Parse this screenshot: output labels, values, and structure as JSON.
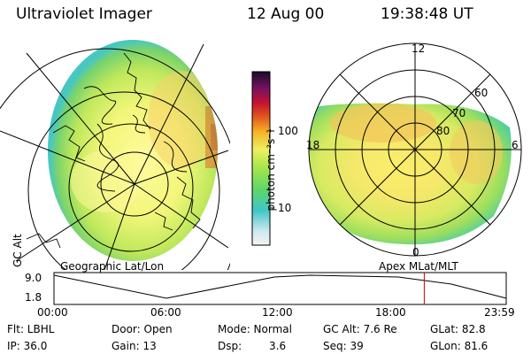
{
  "header": {
    "instrument": "Ultraviolet Imager",
    "date": "12 Aug 00",
    "time": "19:38:48 UT"
  },
  "colorbar": {
    "unit_label": "photon cm⁻²s⁻¹",
    "tick_100": "100",
    "tick_10": "10"
  },
  "left_map": {
    "caption": "Geographic Lat/Lon"
  },
  "right_map": {
    "caption": "Apex MLat/MLT",
    "mlt_labels": {
      "top": "12",
      "left": "18",
      "right": "6",
      "bottom": "0"
    },
    "lat_labels": {
      "l60": "60",
      "l70": "70",
      "l80": "80"
    }
  },
  "altitude_plot": {
    "ylabel": "GC Alt",
    "ymax": "9.0",
    "ymin": "1.8",
    "xticks": [
      "00:00",
      "06:00",
      "12:00",
      "18:00",
      "23:59"
    ],
    "current_marker_hour": 19.65,
    "colors": {
      "marker": "#cc0000"
    }
  },
  "status": {
    "filter": "Flt: LBHL",
    "door": "Door: Open",
    "mode": "Mode: Normal",
    "gc_alt": "GC Alt: 7.6 Re",
    "glat": "GLat:  82.8",
    "ip": "IP: 36.0",
    "gain": "Gain: 13",
    "dsp_label": "Dsp:",
    "dsp_value": "3.6",
    "seq": "Seq: 39",
    "glon": "GLon:  81.6"
  }
}
